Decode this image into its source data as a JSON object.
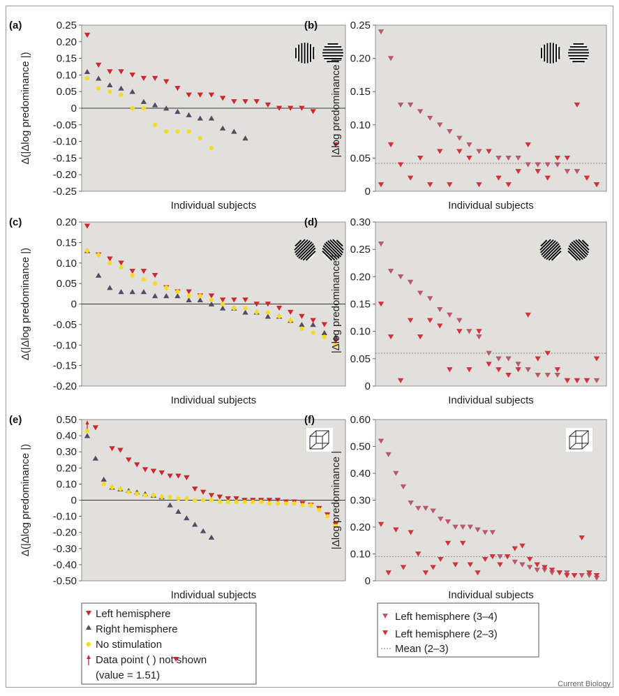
{
  "figure": {
    "credit": "Current Biology",
    "colors": {
      "plot_bg": "#e2e0dc",
      "left_hemisphere": "#d0262d",
      "right_hemisphere": "#574a63",
      "no_stimulation": "#f5dc1c",
      "left_34": "#b85a6a",
      "left_23": "#d5313d",
      "mean_line": "#8a8a8a"
    },
    "legend_left": {
      "items": [
        {
          "label": "Left hemisphere",
          "marker": "down-triangle",
          "color": "#d0262d"
        },
        {
          "label": "Right hemisphere",
          "marker": "up-triangle",
          "color": "#574a63"
        },
        {
          "label": "No stimulation",
          "marker": "dot",
          "color": "#f5dc1c"
        }
      ],
      "note_line1_pre": "Data point (",
      "note_line1_post": ") not shown",
      "note_line2": "(value = 1.51)",
      "note_icon": "red-up-arrow-icon"
    },
    "legend_right": {
      "items": [
        {
          "label": "Left hemisphere (3–4)",
          "marker": "down-triangle",
          "color": "#b85a6a"
        },
        {
          "label": "Left hemisphere (2–3)",
          "marker": "down-triangle",
          "color": "#d5313d"
        },
        {
          "label": "Mean (2–3)",
          "marker": "dotted-line",
          "color": "#8a8a8a"
        }
      ]
    }
  },
  "chart_data": [
    {
      "panel": "(a)",
      "type": "scatter",
      "stimulus_icon": "vertical-horizontal-gratings-icon",
      "xlabel": "Individual subjects",
      "ylabel": "Δ(|Δlog predominance |)",
      "ylim": [
        -0.25,
        0.25
      ],
      "yticks": [
        "0.25",
        "0.20",
        "0.15",
        "0.10",
        "0.05",
        "0",
        "-0.05",
        "-0.10",
        "-0.15",
        "-0.20",
        "-0.25"
      ],
      "ytick_values": [
        0.25,
        0.2,
        0.15,
        0.1,
        0.05,
        0,
        -0.05,
        -0.1,
        -0.15,
        -0.2,
        -0.25
      ],
      "zero_line": true,
      "n_positions": 23,
      "series": [
        {
          "name": "Left hemisphere",
          "marker": "down-triangle",
          "x": [
            1,
            2,
            3,
            4,
            5,
            6,
            7,
            8,
            9,
            10,
            11,
            12,
            13,
            14,
            15,
            16,
            17,
            18,
            19,
            20,
            21,
            23
          ],
          "values": [
            0.22,
            0.13,
            0.11,
            0.11,
            0.1,
            0.09,
            0.09,
            0.08,
            0.06,
            0.04,
            0.04,
            0.04,
            0.03,
            0.02,
            0.02,
            0.02,
            0.01,
            0,
            0,
            0,
            -0.01,
            -0.11
          ]
        },
        {
          "name": "Right hemisphere",
          "marker": "up-triangle",
          "x": [
            1,
            2,
            3,
            4,
            5,
            6,
            7,
            8,
            9,
            10,
            11,
            12,
            13,
            14,
            15
          ],
          "values": [
            0.11,
            0.09,
            0.07,
            0.06,
            0.05,
            0.02,
            0.01,
            0,
            -0.01,
            -0.02,
            -0.03,
            -0.03,
            -0.06,
            -0.07,
            -0.09
          ]
        },
        {
          "name": "No stimulation",
          "marker": "dot",
          "x": [
            1,
            2,
            3,
            4,
            5,
            6,
            7,
            8,
            9,
            10,
            11,
            12
          ],
          "values": [
            0.09,
            0.06,
            0.05,
            0.04,
            0,
            0,
            -0.05,
            -0.07,
            -0.07,
            -0.07,
            -0.09,
            -0.12
          ]
        }
      ]
    },
    {
      "panel": "(b)",
      "type": "scatter",
      "stimulus_icon": "vertical-horizontal-gratings-icon",
      "xlabel": "Individual subjects",
      "ylabel": "|Δlog predominance |",
      "ylim": [
        0,
        0.25
      ],
      "yticks": [
        "0.25",
        "0.20",
        "0.15",
        "0.10",
        "0.05",
        "0"
      ],
      "ytick_values": [
        0.25,
        0.2,
        0.15,
        0.1,
        0.05,
        0
      ],
      "mean": 0.042,
      "n_positions": 23,
      "series": [
        {
          "name": "Left hemisphere (3–4)",
          "marker": "down-triangle",
          "x": [
            1,
            2,
            3,
            4,
            5,
            6,
            7,
            8,
            9,
            10,
            11,
            12,
            13,
            14,
            15,
            16,
            17,
            18,
            19,
            20,
            21,
            22,
            23
          ],
          "values": [
            0.24,
            0.2,
            0.13,
            0.13,
            0.12,
            0.11,
            0.1,
            0.09,
            0.08,
            0.07,
            0.06,
            0.06,
            0.05,
            0.05,
            0.05,
            0.04,
            0.04,
            0.04,
            0.04,
            0.03,
            0.03,
            0.02,
            0.01
          ]
        },
        {
          "name": "Left hemisphere (2–3)",
          "marker": "down-triangle",
          "x": [
            1,
            2,
            3,
            4,
            5,
            6,
            7,
            8,
            9,
            10,
            11,
            12,
            13,
            14,
            15,
            16,
            17,
            18,
            19,
            20,
            21,
            22,
            23
          ],
          "values": [
            0.01,
            0.07,
            0.04,
            0.02,
            0.05,
            0.01,
            0.06,
            0.01,
            0.06,
            0.05,
            0.01,
            0.06,
            0.02,
            0.01,
            0.03,
            0.07,
            0.03,
            0.02,
            0.05,
            0.05,
            0.13,
            0.02,
            0.01
          ]
        }
      ]
    },
    {
      "panel": "(c)",
      "type": "scatter",
      "stimulus_icon": "oblique-gratings-icon",
      "xlabel": "Individual subjects",
      "ylabel": "Δ(|Δlog predominance |)",
      "ylim": [
        -0.2,
        0.2
      ],
      "yticks": [
        "0.20",
        "0.15",
        "0.10",
        "0.05",
        "0",
        "-0.05",
        "-0.10",
        "-0.15",
        "-0.20"
      ],
      "ytick_values": [
        0.2,
        0.15,
        0.1,
        0.05,
        0,
        -0.05,
        -0.1,
        -0.15,
        -0.2
      ],
      "zero_line": true,
      "n_positions": 23,
      "series": [
        {
          "name": "Left hemisphere",
          "marker": "down-triangle",
          "x": [
            1,
            2,
            3,
            4,
            5,
            6,
            7,
            8,
            9,
            10,
            11,
            12,
            13,
            14,
            15,
            16,
            17,
            18,
            19,
            20,
            21,
            22,
            23
          ],
          "values": [
            0.19,
            0.12,
            0.11,
            0.1,
            0.08,
            0.08,
            0.07,
            0.04,
            0.03,
            0.03,
            0.02,
            0.02,
            0.01,
            0.01,
            0.01,
            0,
            0,
            -0.01,
            -0.02,
            -0.03,
            -0.04,
            -0.05,
            -0.09
          ]
        },
        {
          "name": "Right hemisphere",
          "marker": "up-triangle",
          "x": [
            1,
            2,
            3,
            4,
            5,
            6,
            7,
            8,
            9,
            10,
            11,
            12,
            13,
            14,
            15,
            16,
            17,
            18,
            19,
            20,
            21,
            22,
            23
          ],
          "values": [
            0.13,
            0.07,
            0.04,
            0.03,
            0.03,
            0.03,
            0.02,
            0.02,
            0.02,
            0.01,
            0.01,
            0,
            -0.01,
            -0.01,
            -0.02,
            -0.02,
            -0.03,
            -0.03,
            -0.04,
            -0.05,
            -0.05,
            -0.07,
            -0.08
          ]
        },
        {
          "name": "No stimulation",
          "marker": "dot",
          "x": [
            1,
            2,
            3,
            4,
            5,
            6,
            7,
            8,
            9,
            10,
            11,
            12,
            13,
            14,
            15,
            16,
            17,
            18,
            19,
            20,
            21,
            22,
            23
          ],
          "values": [
            0.13,
            0.12,
            0.1,
            0.09,
            0.07,
            0.06,
            0.05,
            0.04,
            0.03,
            0.02,
            0.02,
            0.01,
            0,
            -0.01,
            -0.01,
            -0.02,
            -0.02,
            -0.03,
            -0.04,
            -0.06,
            -0.07,
            -0.08,
            -0.1
          ]
        }
      ]
    },
    {
      "panel": "(d)",
      "type": "scatter",
      "stimulus_icon": "oblique-gratings-icon",
      "xlabel": "Individual subjects",
      "ylabel": "|Δlog predominance |",
      "ylim": [
        0,
        0.3
      ],
      "yticks": [
        "0.30",
        "0.25",
        "0.20",
        "0.15",
        "0.10",
        "0.05",
        "0"
      ],
      "ytick_values": [
        0.3,
        0.25,
        0.2,
        0.15,
        0.1,
        0.05,
        0
      ],
      "mean": 0.06,
      "n_positions": 23,
      "series": [
        {
          "name": "Left hemisphere (3–4)",
          "marker": "down-triangle",
          "x": [
            1,
            2,
            3,
            4,
            5,
            6,
            7,
            8,
            9,
            10,
            11,
            12,
            13,
            14,
            15,
            16,
            17,
            18,
            19,
            20,
            21,
            22,
            23
          ],
          "values": [
            0.26,
            0.21,
            0.2,
            0.19,
            0.17,
            0.16,
            0.14,
            0.13,
            0.12,
            0.1,
            0.09,
            0.06,
            0.05,
            0.05,
            0.04,
            0.03,
            0.02,
            0.02,
            0.02,
            0.01,
            0.01,
            0.01,
            0.01
          ]
        },
        {
          "name": "Left hemisphere (2–3)",
          "marker": "down-triangle",
          "x": [
            1,
            2,
            3,
            4,
            5,
            6,
            7,
            8,
            9,
            10,
            11,
            12,
            13,
            14,
            15,
            16,
            17,
            18,
            19,
            20,
            21,
            22,
            23
          ],
          "values": [
            0.15,
            0.09,
            0.01,
            0.12,
            0.09,
            0.12,
            0.11,
            0.03,
            0.1,
            0.03,
            0.1,
            0.04,
            0.03,
            0.02,
            0.03,
            0.13,
            0.05,
            0.06,
            0.03,
            0.01,
            0.01,
            0.01,
            0.05
          ]
        }
      ]
    },
    {
      "panel": "(e)",
      "type": "scatter",
      "stimulus_icon": "necker-cube-icon",
      "xlabel": "Individual subjects",
      "ylabel": "Δ(|Δlog predominance |)",
      "ylim": [
        -0.5,
        0.5
      ],
      "yticks": [
        "0.50",
        "0.40",
        "0.30",
        "0.20",
        "0.10",
        "0",
        "-0.10",
        "-0.20",
        "-0.30",
        "-0.40",
        "-0.50"
      ],
      "ytick_values": [
        0.5,
        0.4,
        0.3,
        0.2,
        0.1,
        0,
        -0.1,
        -0.2,
        -0.3,
        -0.4,
        -0.5
      ],
      "zero_line": true,
      "n_positions": 31,
      "offscale_note_x": 1,
      "series": [
        {
          "name": "Left hemisphere",
          "marker": "down-triangle",
          "x": [
            2,
            4,
            5,
            6,
            7,
            8,
            9,
            10,
            11,
            12,
            13,
            14,
            15,
            16,
            17,
            18,
            19,
            20,
            21,
            22,
            23,
            24,
            25,
            26,
            27,
            28,
            29,
            30,
            31
          ],
          "values": [
            0.45,
            0.32,
            0.31,
            0.25,
            0.22,
            0.19,
            0.18,
            0.17,
            0.15,
            0.15,
            0.14,
            0.07,
            0.05,
            0.03,
            0.02,
            0.01,
            0.01,
            0,
            0,
            0,
            0,
            0,
            -0.01,
            -0.01,
            -0.02,
            -0.03,
            -0.05,
            -0.09,
            -0.15
          ]
        },
        {
          "name": "Right hemisphere",
          "marker": "up-triangle",
          "x": [
            1,
            2,
            3,
            4,
            5,
            6,
            7,
            8,
            9,
            10,
            11,
            12,
            13,
            14,
            15,
            16
          ],
          "values": [
            0.4,
            0.26,
            0.13,
            0.08,
            0.07,
            0.06,
            0.05,
            0.04,
            0.03,
            0.02,
            -0.03,
            -0.07,
            -0.11,
            -0.15,
            -0.19,
            -0.23
          ]
        },
        {
          "name": "No stimulation",
          "marker": "dot",
          "x": [
            1,
            3,
            4,
            5,
            6,
            7,
            8,
            9,
            10,
            11,
            12,
            13,
            14,
            15,
            16,
            17,
            18,
            19,
            20,
            21,
            22,
            23,
            24,
            25,
            26,
            27,
            28,
            29,
            30,
            31
          ],
          "values": [
            0.43,
            0.1,
            0.08,
            0.07,
            0.05,
            0.04,
            0.03,
            0.03,
            0.02,
            0.02,
            0.01,
            0.01,
            0,
            0,
            0,
            -0.01,
            -0.01,
            -0.01,
            -0.01,
            -0.01,
            -0.01,
            -0.02,
            -0.02,
            -0.02,
            -0.02,
            -0.03,
            -0.03,
            -0.06,
            -0.1,
            -0.16
          ]
        }
      ]
    },
    {
      "panel": "(f)",
      "type": "scatter",
      "stimulus_icon": "necker-cube-icon",
      "xlabel": "Individual subjects",
      "ylabel": "|Δlog predominance |",
      "ylim": [
        0,
        0.6
      ],
      "yticks": [
        "0.60",
        "0.50",
        "0.40",
        "0.30",
        "0.20",
        "0.10",
        "0"
      ],
      "ytick_values": [
        0.6,
        0.5,
        0.4,
        0.3,
        0.2,
        0.1,
        0
      ],
      "mean": 0.09,
      "n_positions": 30,
      "series": [
        {
          "name": "Left hemisphere (3–4)",
          "marker": "down-triangle",
          "x": [
            1,
            2,
            3,
            4,
            5,
            6,
            7,
            8,
            9,
            10,
            11,
            12,
            13,
            14,
            15,
            16,
            17,
            18,
            19,
            20,
            21,
            22,
            23,
            24,
            25,
            26,
            27,
            28,
            29,
            30
          ],
          "values": [
            0.52,
            0.47,
            0.4,
            0.35,
            0.29,
            0.27,
            0.27,
            0.26,
            0.23,
            0.22,
            0.2,
            0.2,
            0.2,
            0.19,
            0.18,
            0.18,
            0.09,
            0.09,
            0.07,
            0.06,
            0.05,
            0.04,
            0.04,
            0.03,
            0.03,
            0.03,
            0.02,
            0.02,
            0.02,
            0.01
          ]
        },
        {
          "name": "Left hemisphere (2–3)",
          "marker": "down-triangle",
          "x": [
            1,
            2,
            3,
            4,
            5,
            6,
            7,
            8,
            9,
            10,
            11,
            12,
            13,
            14,
            15,
            16,
            17,
            18,
            19,
            20,
            21,
            22,
            23,
            24,
            25,
            26,
            27,
            28,
            29,
            30
          ],
          "values": [
            0.21,
            0.03,
            0.19,
            0.05,
            0.18,
            0.1,
            0.03,
            0.05,
            0.08,
            0.14,
            0.06,
            0.14,
            0.06,
            0.03,
            0.08,
            0.09,
            0.06,
            0.09,
            0.12,
            0.13,
            0.08,
            0.06,
            0.05,
            0.04,
            0.03,
            0.02,
            0.02,
            0.16,
            0.03,
            0.02
          ]
        }
      ]
    }
  ]
}
